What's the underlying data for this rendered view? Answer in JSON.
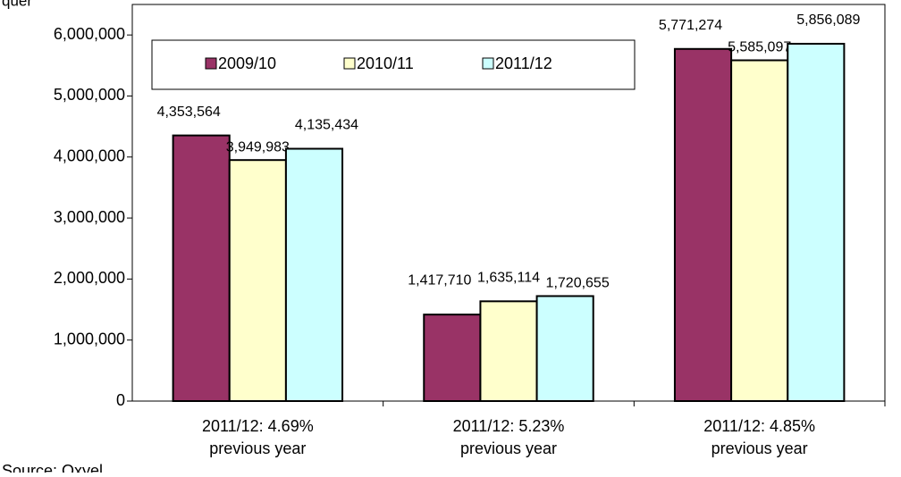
{
  "chart_data": {
    "type": "bar",
    "ylabel": "quer",
    "source": "Source: Oxyel",
    "categories": [
      [
        "2011/12: 4.69%",
        "previous year"
      ],
      [
        "2011/12: 5.23%",
        "previous year"
      ],
      [
        "2011/12: 4.85%",
        "previous year"
      ]
    ],
    "series": [
      {
        "name": "2009/10",
        "color": "#993366",
        "values": [
          4353564,
          1417710,
          5771274
        ],
        "value_labels": [
          "4,353,564",
          "1,417,710",
          "5,771,274"
        ]
      },
      {
        "name": "2010/11",
        "color": "#ffffcc",
        "values": [
          3949983,
          1635114,
          5585097
        ],
        "value_labels": [
          "3,949,983",
          "1,635,114",
          "5,585,097"
        ]
      },
      {
        "name": "2011/12",
        "color": "#ccffff",
        "values": [
          4135434,
          1720655,
          5856089
        ],
        "value_labels": [
          "4,135,434",
          "1,720,655",
          "5,856,089"
        ]
      }
    ],
    "ylim": [
      0,
      6500000
    ],
    "yticks": [
      {
        "value": 0,
        "label": "0"
      },
      {
        "value": 1000000,
        "label": "1,000,000"
      },
      {
        "value": 2000000,
        "label": "2,000,000"
      },
      {
        "value": 3000000,
        "label": "3,000,000"
      },
      {
        "value": 4000000,
        "label": "4,000,000"
      },
      {
        "value": 5000000,
        "label": "5,000,000"
      },
      {
        "value": 6000000,
        "label": "6,000,000"
      }
    ],
    "legend": "top"
  }
}
